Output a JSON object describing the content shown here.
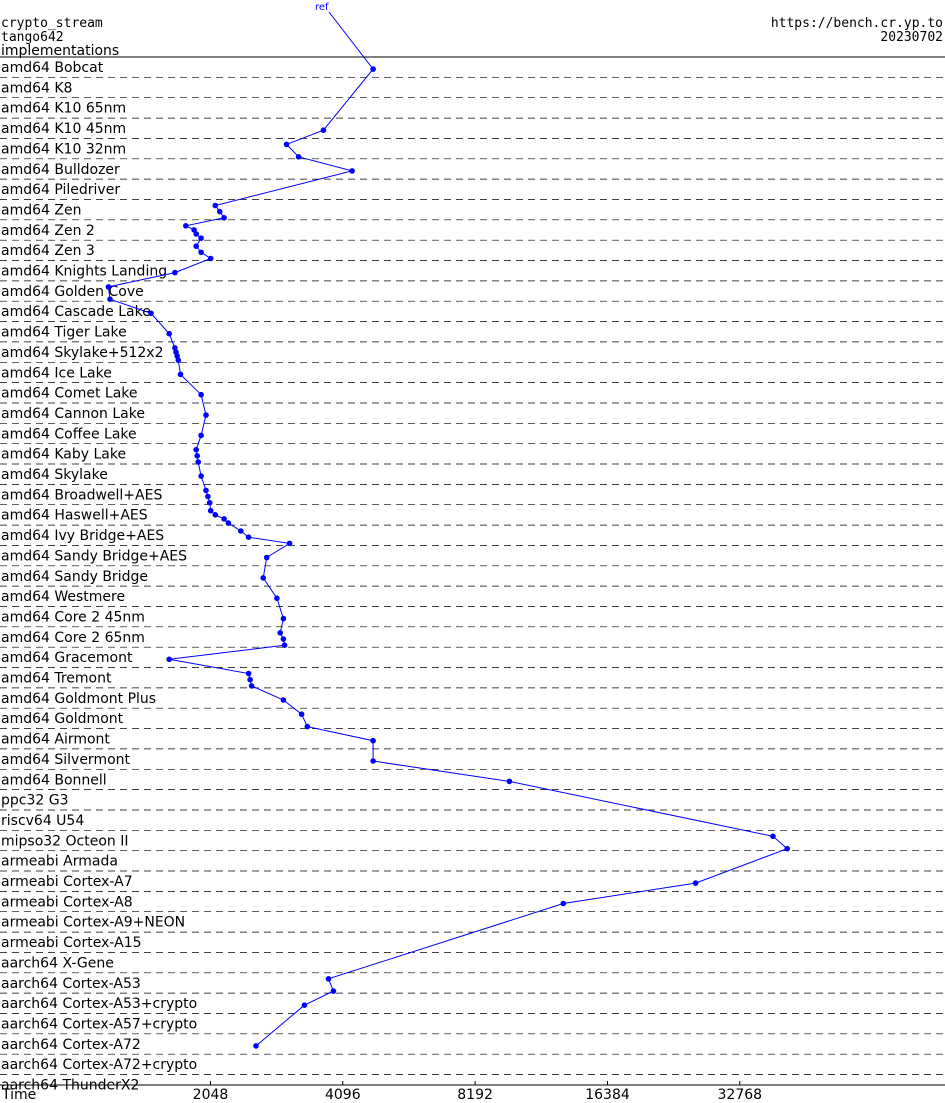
{
  "header": {
    "primitive": "crypto_stream",
    "implementation": "tango642",
    "section": "implementations",
    "site": "https://bench.cr.yp.to",
    "date": "20230702",
    "ref_label": "ref"
  },
  "chart_data": {
    "type": "line",
    "title": "crypto_stream tango642 implementations",
    "xlabel": "Time",
    "xscale": "log2",
    "x_ticks": [
      2048,
      4096,
      8192,
      16384,
      32768
    ],
    "x_tick_labels": [
      "2048",
      "4096",
      "8192",
      "16384",
      "32768"
    ],
    "xlim": [
      680,
      96000
    ],
    "line_color": "#0000ff",
    "grid": "dashed horizontal separators",
    "series": [
      {
        "name": "ref",
        "categories": [
          {
            "label": "amd64 Bobcat",
            "points": [
              4800
            ]
          },
          {
            "label": "amd64 K8",
            "points": []
          },
          {
            "label": "amd64 K10 65nm",
            "points": []
          },
          {
            "label": "amd64 K10 45nm",
            "points": [
              3700
            ]
          },
          {
            "label": "amd64 K10 32nm",
            "points": [
              3050,
              3250
            ]
          },
          {
            "label": "amd64 Bulldozer",
            "points": [
              4300
            ]
          },
          {
            "label": "amd64 Piledriver",
            "points": []
          },
          {
            "label": "amd64 Zen",
            "points": [
              2100,
              2150,
              2200
            ]
          },
          {
            "label": "amd64 Zen 2",
            "points": [
              1800,
              1880,
              1900,
              1950
            ]
          },
          {
            "label": "amd64 Zen 3",
            "points": [
              1900,
              1950,
              2050
            ]
          },
          {
            "label": "amd64 Knights Landing",
            "points": [
              1700
            ]
          },
          {
            "label": "amd64 Golden Cove",
            "points": [
              1200,
              1210
            ]
          },
          {
            "label": "amd64 Cascade Lake",
            "points": [
              1500
            ]
          },
          {
            "label": "amd64 Tiger Lake",
            "points": [
              1650
            ]
          },
          {
            "label": "amd64 Skylake+512x2",
            "points": [
              1700,
              1710,
              1720,
              1730
            ]
          },
          {
            "label": "amd64 Ice Lake",
            "points": [
              1750
            ]
          },
          {
            "label": "amd64 Comet Lake",
            "points": [
              1950
            ]
          },
          {
            "label": "amd64 Cannon Lake",
            "points": [
              2000
            ]
          },
          {
            "label": "amd64 Coffee Lake",
            "points": [
              1950
            ]
          },
          {
            "label": "amd64 Kaby Lake",
            "points": [
              1900,
              1910,
              1920
            ]
          },
          {
            "label": "amd64 Skylake",
            "points": [
              1950
            ]
          },
          {
            "label": "amd64 Broadwell+AES",
            "points": [
              2000,
              2020,
              2040
            ]
          },
          {
            "label": "amd64 Haswell+AES",
            "points": [
              2050,
              2100,
              2200,
              2250
            ]
          },
          {
            "label": "amd64 Ivy Bridge+AES",
            "points": [
              2400,
              2500,
              3100
            ]
          },
          {
            "label": "amd64 Sandy Bridge+AES",
            "points": [
              2750
            ]
          },
          {
            "label": "amd64 Sandy Bridge",
            "points": [
              2700
            ]
          },
          {
            "label": "amd64 Westmere",
            "points": [
              2900
            ]
          },
          {
            "label": "amd64 Core 2 45nm",
            "points": [
              3000
            ]
          },
          {
            "label": "amd64 Core 2 65nm",
            "points": [
              2950,
              3000,
              3020
            ]
          },
          {
            "label": "amd64 Gracemont",
            "points": [
              1650
            ]
          },
          {
            "label": "amd64 Tremont",
            "points": [
              2500,
              2520,
              2540
            ]
          },
          {
            "label": "amd64 Goldmont Plus",
            "points": [
              3000
            ]
          },
          {
            "label": "amd64 Goldmont",
            "points": [
              3300,
              3400
            ]
          },
          {
            "label": "amd64 Airmont",
            "points": [
              4800
            ]
          },
          {
            "label": "amd64 Silvermont",
            "points": [
              4800
            ]
          },
          {
            "label": "amd64 Bonnell",
            "points": [
              9800
            ]
          },
          {
            "label": "ppc32 G3",
            "points": []
          },
          {
            "label": "riscv64 U54",
            "points": []
          },
          {
            "label": "mipso32 Octeon II",
            "points": [
              39000,
              42000
            ]
          },
          {
            "label": "armeabi Armada",
            "points": []
          },
          {
            "label": "armeabi Cortex-A7",
            "points": [
              26000
            ]
          },
          {
            "label": "armeabi Cortex-A8",
            "points": [
              13000
            ]
          },
          {
            "label": "armeabi Cortex-A9+NEON",
            "points": []
          },
          {
            "label": "armeabi Cortex-A15",
            "points": []
          },
          {
            "label": "aarch64 X-Gene",
            "points": []
          },
          {
            "label": "aarch64 Cortex-A53",
            "points": [
              3800,
              3900
            ]
          },
          {
            "label": "aarch64 Cortex-A53+crypto",
            "points": [
              3350
            ]
          },
          {
            "label": "aarch64 Cortex-A57+crypto",
            "points": []
          },
          {
            "label": "aarch64 Cortex-A72",
            "points": [
              2600
            ]
          },
          {
            "label": "aarch64 Cortex-A72+crypto",
            "points": []
          },
          {
            "label": "aarch64 ThunderX2",
            "points": []
          }
        ]
      }
    ]
  }
}
